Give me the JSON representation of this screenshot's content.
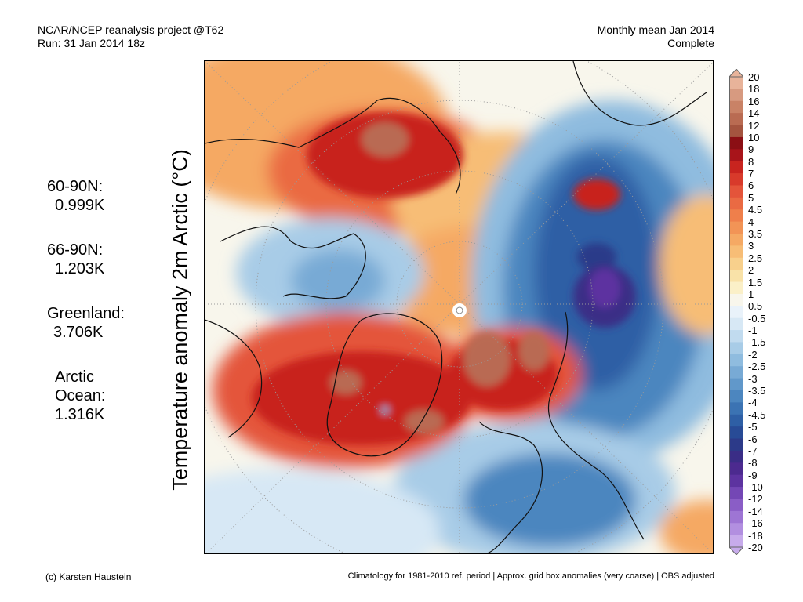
{
  "header": {
    "left_line1": "NCAR/NCEP reanalysis project @T62",
    "left_line2": "Run: 31 Jan 2014 18z",
    "right_line1": "Monthly mean Jan 2014",
    "right_line2": "Complete"
  },
  "axis_label": "Temperature anomaly 2m Arctic (°C)",
  "stats": [
    {
      "label": "60-90N:",
      "value": "0.999K"
    },
    {
      "label": "66-90N:",
      "value": "1.203K"
    },
    {
      "label": "Greenland:",
      "value": "3.706K"
    },
    {
      "label": "Arctic",
      "label2": "Ocean:",
      "value": "1.316K"
    }
  ],
  "colorbar": {
    "labels": [
      "20",
      "18",
      "16",
      "14",
      "12",
      "10",
      "9",
      "8",
      "7",
      "6",
      "5",
      "4.5",
      "4",
      "3.5",
      "3",
      "2.5",
      "2",
      "1.5",
      "1",
      "0.5",
      "-0.5",
      "-1",
      "-1.5",
      "-2",
      "-2.5",
      "-3",
      "-3.5",
      "-4",
      "-4.5",
      "-5",
      "-6",
      "-7",
      "-8",
      "-9",
      "-10",
      "-12",
      "-14",
      "-16",
      "-18",
      "-20"
    ],
    "colors": [
      "#e8b39a",
      "#d79a80",
      "#c98266",
      "#b96b52",
      "#a4543f",
      "#8b0f14",
      "#a8141a",
      "#c8241f",
      "#d83a2b",
      "#e4543a",
      "#ea6a43",
      "#ef7f4b",
      "#f29456",
      "#f5a964",
      "#f7bd76",
      "#f8d08c",
      "#f9e2a8",
      "#fbf0c8",
      "#f8f6ec",
      "#e9f2fa",
      "#d7e8f5",
      "#c1dbef",
      "#a8cce7",
      "#8fbcdf",
      "#78aad5",
      "#6198ca",
      "#4c86bf",
      "#3b73b3",
      "#2e5fa5",
      "#284b96",
      "#2c3a89",
      "#3a2d86",
      "#4c2a8f",
      "#5d33a0",
      "#7447b5",
      "#8a5dc6",
      "#9e75d4",
      "#b28fe0",
      "#c7abeb"
    ]
  },
  "footer": {
    "left": "(c) Karsten Haustein",
    "right": "Climatology for 1981-2010 ref. period | Approx. grid box anomalies (very coarse) | OBS adjusted"
  }
}
